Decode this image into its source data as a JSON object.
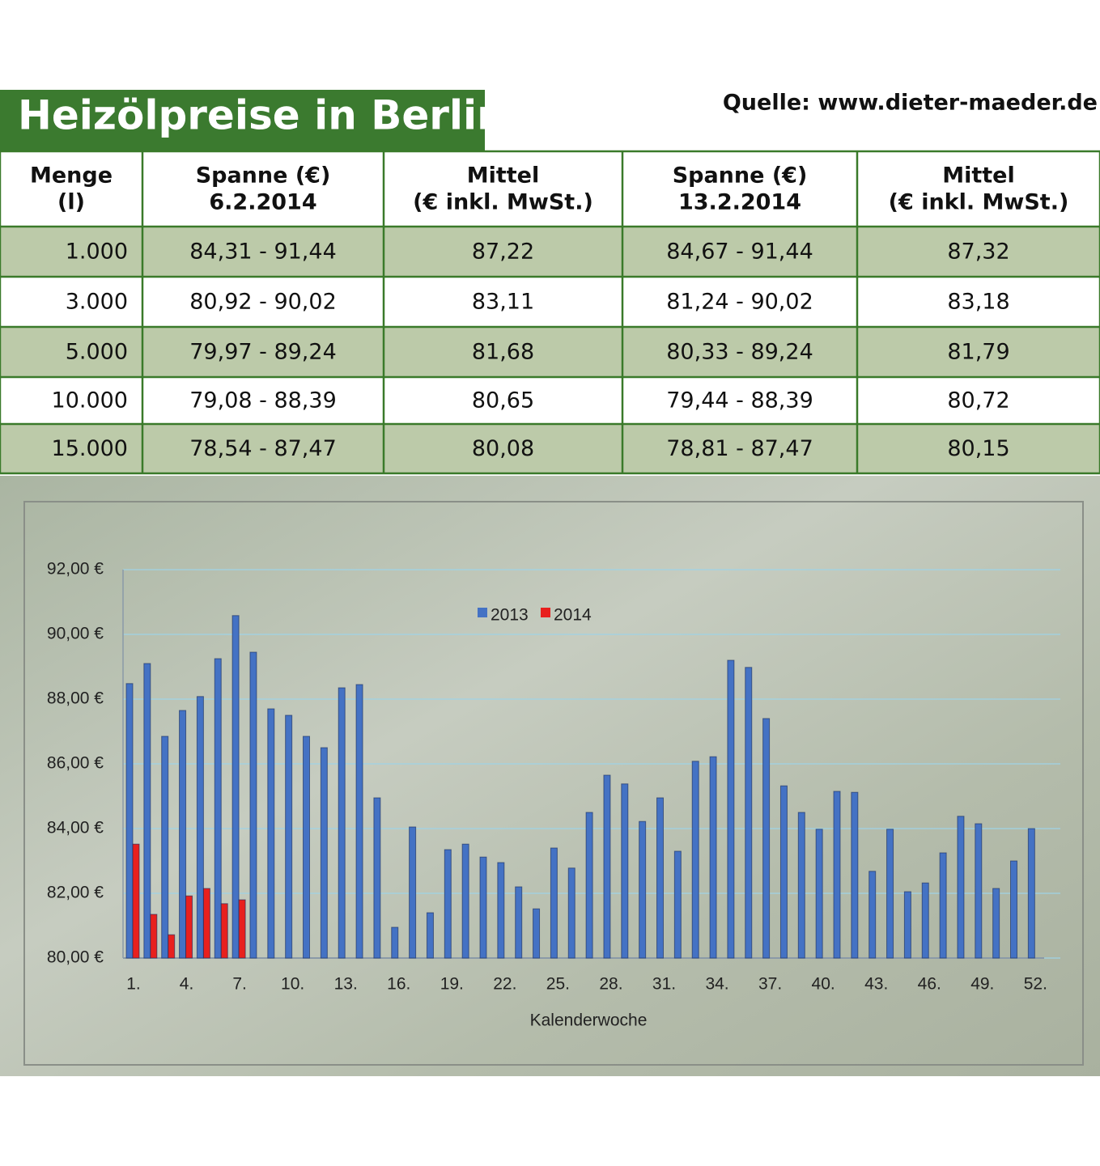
{
  "header": {
    "title": "Heizölpreise in Berlin",
    "source": "Quelle: www.dieter-maeder.de"
  },
  "table": {
    "headers": [
      [
        "Menge",
        "(l)"
      ],
      [
        "Spanne (€)",
        "6.2.2014"
      ],
      [
        "Mittel",
        "(€ inkl. MwSt.)"
      ],
      [
        "Spanne (€)",
        "13.2.2014"
      ],
      [
        "Mittel",
        "(€ inkl. MwSt.)"
      ]
    ],
    "rows": [
      [
        "1.000",
        "84,31 - 91,44",
        "87,22",
        "84,67 - 91,44",
        "87,32"
      ],
      [
        "3.000",
        "80,92 - 90,02",
        "83,11",
        "81,24 - 90,02",
        "83,18"
      ],
      [
        "5.000",
        "79,97 - 89,24",
        "81,68",
        "80,33 - 89,24",
        "81,79"
      ],
      [
        "10.000",
        "79,08 - 88,39",
        "80,65",
        "79,44 - 88,39",
        "80,72"
      ],
      [
        "15.000",
        "78,54 - 87,47",
        "80,08",
        "78,81 - 87,47",
        "80,15"
      ]
    ]
  },
  "chart_data": {
    "type": "bar",
    "x_label": "Kalenderwoche",
    "categories": [
      "1.",
      null,
      null,
      "4.",
      null,
      null,
      "7.",
      null,
      null,
      "10.",
      null,
      null,
      "13.",
      null,
      null,
      "16.",
      null,
      null,
      "19.",
      null,
      null,
      "22.",
      null,
      null,
      "25.",
      null,
      null,
      "28.",
      null,
      null,
      "31.",
      null,
      null,
      "34.",
      null,
      null,
      "37.",
      null,
      null,
      "40.",
      null,
      null,
      "43.",
      null,
      null,
      "46.",
      null,
      null,
      "49.",
      null,
      null,
      "52."
    ],
    "series": [
      {
        "name": "2013",
        "color": "#4472c4",
        "values": [
          88.48,
          89.1,
          86.85,
          87.65,
          88.08,
          89.25,
          90.58,
          89.45,
          87.7,
          87.5,
          86.85,
          86.5,
          88.35,
          88.45,
          84.95,
          80.95,
          84.05,
          81.4,
          83.35,
          83.52,
          83.12,
          82.95,
          82.2,
          81.52,
          83.4,
          82.78,
          84.5,
          85.65,
          85.38,
          84.22,
          84.95,
          83.3,
          86.08,
          86.22,
          89.2,
          88.98,
          87.4,
          85.32,
          84.5,
          83.98,
          85.15,
          85.12,
          82.68,
          83.98,
          82.05,
          82.32,
          83.25,
          84.38,
          84.15,
          82.15,
          83.0,
          84.0
        ]
      },
      {
        "name": "2014",
        "color": "#e8201e",
        "values": [
          83.52,
          81.35,
          80.72,
          81.92,
          82.15,
          81.68,
          81.8,
          null,
          null,
          null,
          null,
          null,
          null,
          null,
          null,
          null,
          null,
          null,
          null,
          null,
          null,
          null,
          null,
          null,
          null,
          null,
          null,
          null,
          null,
          null,
          null,
          null,
          null,
          null,
          null,
          null,
          null,
          null,
          null,
          null,
          null,
          null,
          null,
          null,
          null,
          null,
          null,
          null,
          null,
          null,
          null,
          null
        ]
      }
    ],
    "ylim": [
      80,
      92
    ],
    "yticks": [
      {
        "value": 80,
        "label": "80,00 €"
      },
      {
        "value": 82,
        "label": "82,00 €"
      },
      {
        "value": 84,
        "label": "84,00 €"
      },
      {
        "value": 86,
        "label": "86,00 €"
      },
      {
        "value": 88,
        "label": "88,00 €"
      },
      {
        "value": 90,
        "label": "90,00 €"
      },
      {
        "value": 92,
        "label": "92,00 €"
      }
    ],
    "grid": true,
    "legend": "top"
  }
}
